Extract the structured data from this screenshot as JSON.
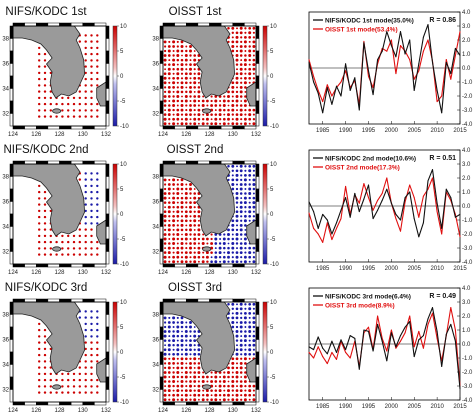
{
  "colors": {
    "nifs": "#111111",
    "oisst": "#e01010",
    "positive": "#cc0000",
    "negative": "#1a1aa8",
    "land": "#9a9a9a"
  },
  "map_ticks": {
    "lon_labels": [
      "124",
      "126",
      "128",
      "130",
      "132"
    ],
    "lat_labels": [
      "32",
      "34",
      "36",
      "38"
    ]
  },
  "colorbar_ticks": [
    "10",
    "5",
    "0",
    "-5",
    "-10"
  ],
  "rows": [
    {
      "nifs_title": "NIFS/KODC 1st",
      "oisst_title": "OISST 1st",
      "nifs_pattern": "positive",
      "oisst_pattern": "positive"
    },
    {
      "nifs_title": "NIFS/KODC 2nd",
      "oisst_title": "OISST 2nd",
      "nifs_pattern": "mixed",
      "oisst_pattern": "dipole"
    },
    {
      "nifs_title": "NIFS/KODC 3rd",
      "oisst_title": "OISST 3rd",
      "nifs_pattern": "mixed3",
      "oisst_pattern": "tripole"
    }
  ],
  "chart_data": [
    {
      "type": "line",
      "x_ticks": [
        "1985",
        "1990",
        "1995",
        "2000",
        "2005",
        "2010",
        "2015"
      ],
      "xlim": [
        1982,
        2015
      ],
      "ylim": [
        -4,
        4
      ],
      "y_ticks": [
        "4.0",
        "3.0",
        "2.0",
        "1.0",
        "0.0",
        "-1.0",
        "-2.0",
        "-3.0",
        "-4.0"
      ],
      "annotation": "R = 0.86",
      "series": [
        {
          "name": "NIFS/KODC 1st mode(35.0%)",
          "x": [
            1982,
            1983,
            1984,
            1985,
            1986,
            1987,
            1988,
            1989,
            1990,
            1991,
            1992,
            1993,
            1994,
            1995,
            1996,
            1997,
            1998,
            1999,
            2000,
            2001,
            2002,
            2003,
            2004,
            2005,
            2006,
            2007,
            2008,
            2009,
            2010,
            2011,
            2012,
            2013,
            2014,
            2015
          ],
          "values": [
            0.4,
            -1.0,
            -1.8,
            -3.2,
            -1.4,
            -2.6,
            -1.3,
            -2.0,
            0.3,
            -1.6,
            -0.7,
            -3.0,
            1.8,
            -0.2,
            -1.9,
            0.6,
            1.2,
            2.6,
            1.6,
            0.8,
            2.6,
            1.0,
            2.0,
            -1.6,
            0.3,
            2.2,
            3.1,
            0.4,
            -1.6,
            -3.2,
            0.4,
            -0.4,
            1.4,
            0.9
          ]
        },
        {
          "name": "OISST 1st mode(53.4%)",
          "x": [
            1982,
            1983,
            1984,
            1985,
            1986,
            1987,
            1988,
            1989,
            1990,
            1991,
            1992,
            1993,
            1994,
            1995,
            1996,
            1997,
            1998,
            1999,
            2000,
            2001,
            2002,
            2003,
            2004,
            2005,
            2006,
            2007,
            2008,
            2009,
            2010,
            2011,
            2012,
            2013,
            2014,
            2015
          ],
          "values": [
            0.6,
            -0.6,
            -1.6,
            -2.4,
            -1.2,
            -2.0,
            -1.4,
            -1.0,
            -0.2,
            -1.4,
            -0.9,
            -2.6,
            1.9,
            -0.6,
            -1.4,
            0.3,
            1.4,
            1.2,
            2.0,
            -0.4,
            1.6,
            1.2,
            0.6,
            -0.8,
            -0.2,
            1.2,
            2.0,
            0.5,
            -2.4,
            -2.0,
            0.6,
            -0.8,
            0.9,
            2.6
          ]
        }
      ]
    },
    {
      "type": "line",
      "x_ticks": [
        "1985",
        "1990",
        "1995",
        "2000",
        "2005",
        "2010",
        "2015"
      ],
      "xlim": [
        1982,
        2015
      ],
      "ylim": [
        -4,
        4
      ],
      "y_ticks": [
        "4.0",
        "3.0",
        "2.0",
        "1.0",
        "0.0",
        "-1.0",
        "-2.0",
        "-3.0",
        "-4.0"
      ],
      "annotation": "R = 0.51",
      "series": [
        {
          "name": "NIFS/KODC 2nd mode(10.6%)",
          "x": [
            1982,
            1983,
            1984,
            1985,
            1986,
            1987,
            1988,
            1989,
            1990,
            1991,
            1992,
            1993,
            1994,
            1995,
            1996,
            1997,
            1998,
            1999,
            2000,
            2001,
            2002,
            2003,
            2004,
            2005,
            2006,
            2007,
            2008,
            2009,
            2010,
            2011,
            2012,
            2013,
            2014,
            2015
          ],
          "values": [
            0.3,
            -0.4,
            -1.6,
            -0.6,
            -1.0,
            -2.0,
            -1.2,
            -0.3,
            0.6,
            -0.8,
            0.9,
            -0.4,
            0.5,
            1.5,
            -0.9,
            -0.3,
            0.4,
            1.2,
            0.2,
            -0.6,
            -1.0,
            0.6,
            1.0,
            -0.9,
            -2.2,
            -1.2,
            1.8,
            2.6,
            0.2,
            -1.6,
            1.2,
            0.6,
            -0.8,
            -0.6
          ]
        },
        {
          "name": "OISST 2nd mode(17.3%)",
          "x": [
            1982,
            1983,
            1984,
            1985,
            1986,
            1987,
            1988,
            1989,
            1990,
            1991,
            1992,
            1993,
            1994,
            1995,
            1996,
            1997,
            1998,
            1999,
            2000,
            2001,
            2002,
            2003,
            2004,
            2005,
            2006,
            2007,
            2008,
            2009,
            2010,
            2011,
            2012,
            2013,
            2014,
            2015
          ],
          "values": [
            -0.5,
            -1.6,
            -2.0,
            -2.6,
            -1.2,
            -2.4,
            -1.6,
            -0.9,
            1.4,
            -0.6,
            0.8,
            0.2,
            1.6,
            0.6,
            -0.3,
            0.4,
            0.9,
            2.0,
            0.2,
            -0.9,
            -1.8,
            0.3,
            1.5,
            0.6,
            -0.8,
            0.7,
            1.2,
            2.0,
            -0.4,
            -2.0,
            1.0,
            0.4,
            -0.6,
            -2.2
          ]
        }
      ]
    },
    {
      "type": "line",
      "x_ticks": [
        "1985",
        "1990",
        "1995",
        "2000",
        "2005",
        "2010",
        "2015"
      ],
      "xlim": [
        1982,
        2015
      ],
      "ylim": [
        -4,
        4
      ],
      "y_ticks": [
        "4.0",
        "3.0",
        "2.0",
        "1.0",
        "0.0",
        "-1.0",
        "-2.0",
        "-3.0",
        "-4.0"
      ],
      "annotation": "R = 0.49",
      "series": [
        {
          "name": "NIFS/KODC 3rd mode(6.4%)",
          "x": [
            1982,
            1983,
            1984,
            1985,
            1986,
            1987,
            1988,
            1989,
            1990,
            1991,
            1992,
            1993,
            1994,
            1995,
            1996,
            1997,
            1998,
            1999,
            2000,
            2001,
            2002,
            2003,
            2004,
            2005,
            2006,
            2007,
            2008,
            2009,
            2010,
            2011,
            2012,
            2013,
            2014,
            2015
          ],
          "values": [
            -0.2,
            -0.4,
            0.5,
            -0.3,
            -0.7,
            0.2,
            -0.6,
            0.3,
            -0.4,
            0.6,
            0.4,
            -1.8,
            1.0,
            0.9,
            -0.5,
            1.4,
            0.2,
            -1.2,
            0.8,
            -0.2,
            0.6,
            1.2,
            1.6,
            -0.9,
            0.3,
            0.6,
            1.8,
            2.6,
            0.9,
            -1.6,
            0.7,
            1.4,
            0.2,
            -3.2
          ]
        },
        {
          "name": "OISST 3rd mode(8.9%)",
          "x": [
            1982,
            1983,
            1984,
            1985,
            1986,
            1987,
            1988,
            1989,
            1990,
            1991,
            1992,
            1993,
            1994,
            1995,
            1996,
            1997,
            1998,
            1999,
            2000,
            2001,
            2002,
            2003,
            2004,
            2005,
            2006,
            2007,
            2008,
            2009,
            2010,
            2011,
            2012,
            2013,
            2014,
            2015
          ],
          "values": [
            -0.6,
            -1.0,
            -0.2,
            -0.9,
            -1.4,
            -0.6,
            -1.1,
            0.2,
            -0.6,
            -1.0,
            0.2,
            -1.6,
            0.8,
            1.2,
            -0.4,
            2.0,
            0.4,
            -0.5,
            1.0,
            -0.3,
            0.2,
            0.8,
            2.0,
            -0.2,
            0.9,
            -0.3,
            1.4,
            2.2,
            0.4,
            -1.2,
            0.6,
            2.6,
            1.0,
            -3.0
          ]
        }
      ]
    }
  ]
}
